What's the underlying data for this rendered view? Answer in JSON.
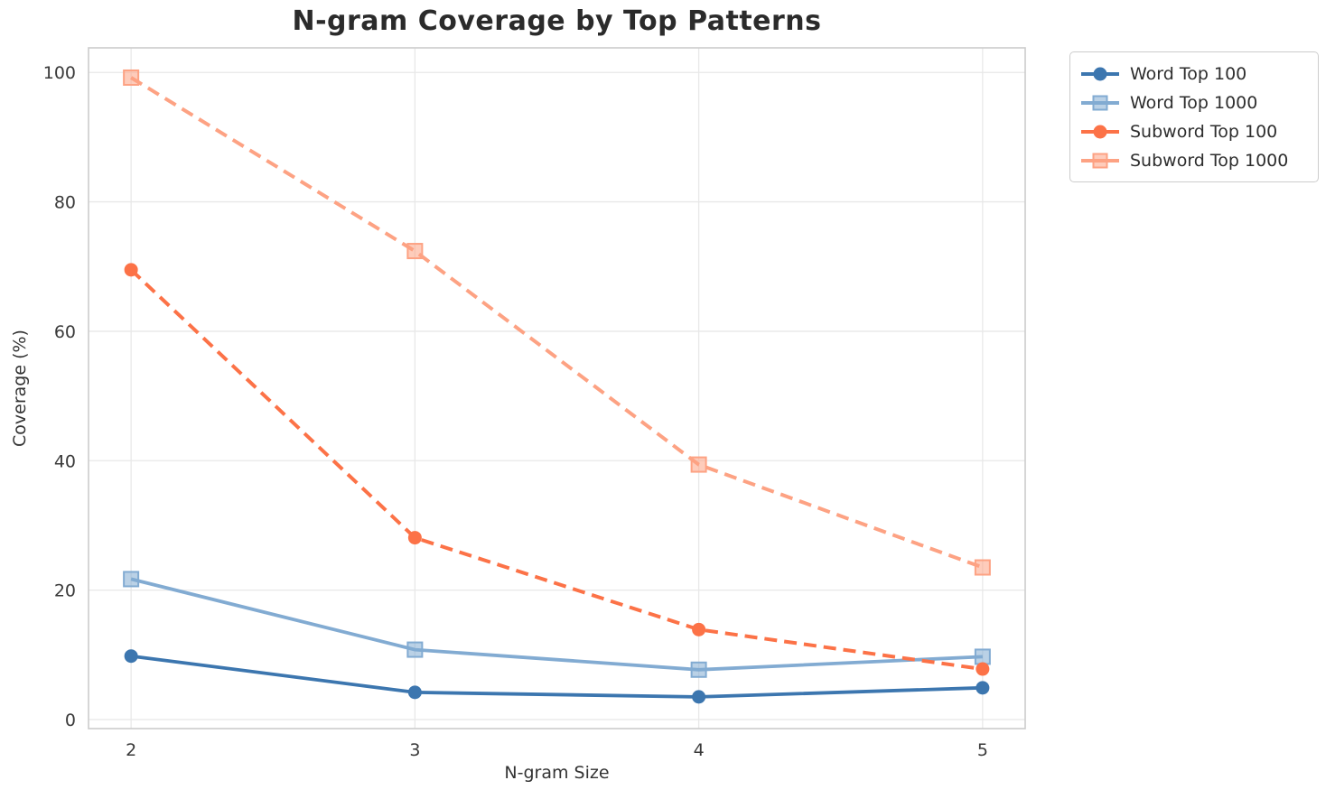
{
  "chart_data": {
    "type": "line",
    "title": "N-gram Coverage by Top Patterns",
    "xlabel": "N-gram Size",
    "ylabel": "Coverage (%)",
    "x": [
      2,
      3,
      4,
      5
    ],
    "xticks": [
      2,
      3,
      4,
      5
    ],
    "yticks": [
      0,
      20,
      40,
      60,
      80,
      100
    ],
    "xlim": [
      1.85,
      5.15
    ],
    "ylim": [
      -1.4,
      103.8
    ],
    "grid": true,
    "legend_position": "outside-top-right",
    "series": [
      {
        "name": "Word Top 100",
        "color": "#3c76af",
        "line": "solid",
        "marker": "circle",
        "values": [
          9.8,
          4.2,
          3.5,
          4.9
        ]
      },
      {
        "name": "Word Top 1000",
        "color": "#82abd2",
        "line": "solid",
        "marker": "square",
        "values": [
          21.7,
          10.8,
          7.7,
          9.7
        ]
      },
      {
        "name": "Subword Top 100",
        "color": "#fc7247",
        "line": "dashed",
        "marker": "circle",
        "values": [
          69.5,
          28.1,
          13.9,
          7.8
        ]
      },
      {
        "name": "Subword Top 1000",
        "color": "#fda283",
        "line": "dashed",
        "marker": "square",
        "values": [
          99.2,
          72.4,
          39.4,
          23.5
        ]
      }
    ]
  },
  "style": {
    "background": "#ffffff",
    "grid_color": "#e8e8e8",
    "spine_color": "#cccccc",
    "tick_color": "#3a3a3a",
    "title_color": "#2b2b2b",
    "label_color": "#333333",
    "legend_border": "#cccccc"
  }
}
